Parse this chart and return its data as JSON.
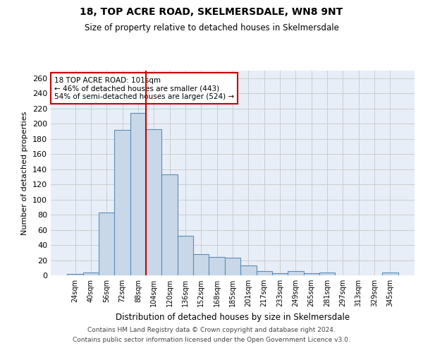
{
  "title": "18, TOP ACRE ROAD, SKELMERSDALE, WN8 9NT",
  "subtitle": "Size of property relative to detached houses in Skelmersdale",
  "xlabel": "Distribution of detached houses by size in Skelmersdale",
  "ylabel": "Number of detached properties",
  "footnote1": "Contains HM Land Registry data © Crown copyright and database right 2024.",
  "footnote2": "Contains public sector information licensed under the Open Government Licence v3.0.",
  "categories": [
    "24sqm",
    "40sqm",
    "56sqm",
    "72sqm",
    "88sqm",
    "104sqm",
    "120sqm",
    "136sqm",
    "152sqm",
    "168sqm",
    "185sqm",
    "201sqm",
    "217sqm",
    "233sqm",
    "249sqm",
    "265sqm",
    "281sqm",
    "297sqm",
    "313sqm",
    "329sqm",
    "345sqm"
  ],
  "bar_heights": [
    2,
    4,
    83,
    192,
    214,
    193,
    133,
    52,
    28,
    24,
    23,
    13,
    6,
    3,
    6,
    3,
    4,
    0,
    0,
    0,
    4
  ],
  "bar_color": "#c8d8e8",
  "bar_edge_color": "#5b8db8",
  "grid_color": "#cccccc",
  "bg_color": "#e8eef8",
  "vertical_line_x": 4.5,
  "vline_color": "#cc0000",
  "annotation_text": "18 TOP ACRE ROAD: 101sqm\n← 46% of detached houses are smaller (443)\n54% of semi-detached houses are larger (524) →",
  "annotation_box_color": "#cc0000",
  "ylim": [
    0,
    270
  ],
  "yticks": [
    0,
    20,
    40,
    60,
    80,
    100,
    120,
    140,
    160,
    180,
    200,
    220,
    240,
    260
  ]
}
